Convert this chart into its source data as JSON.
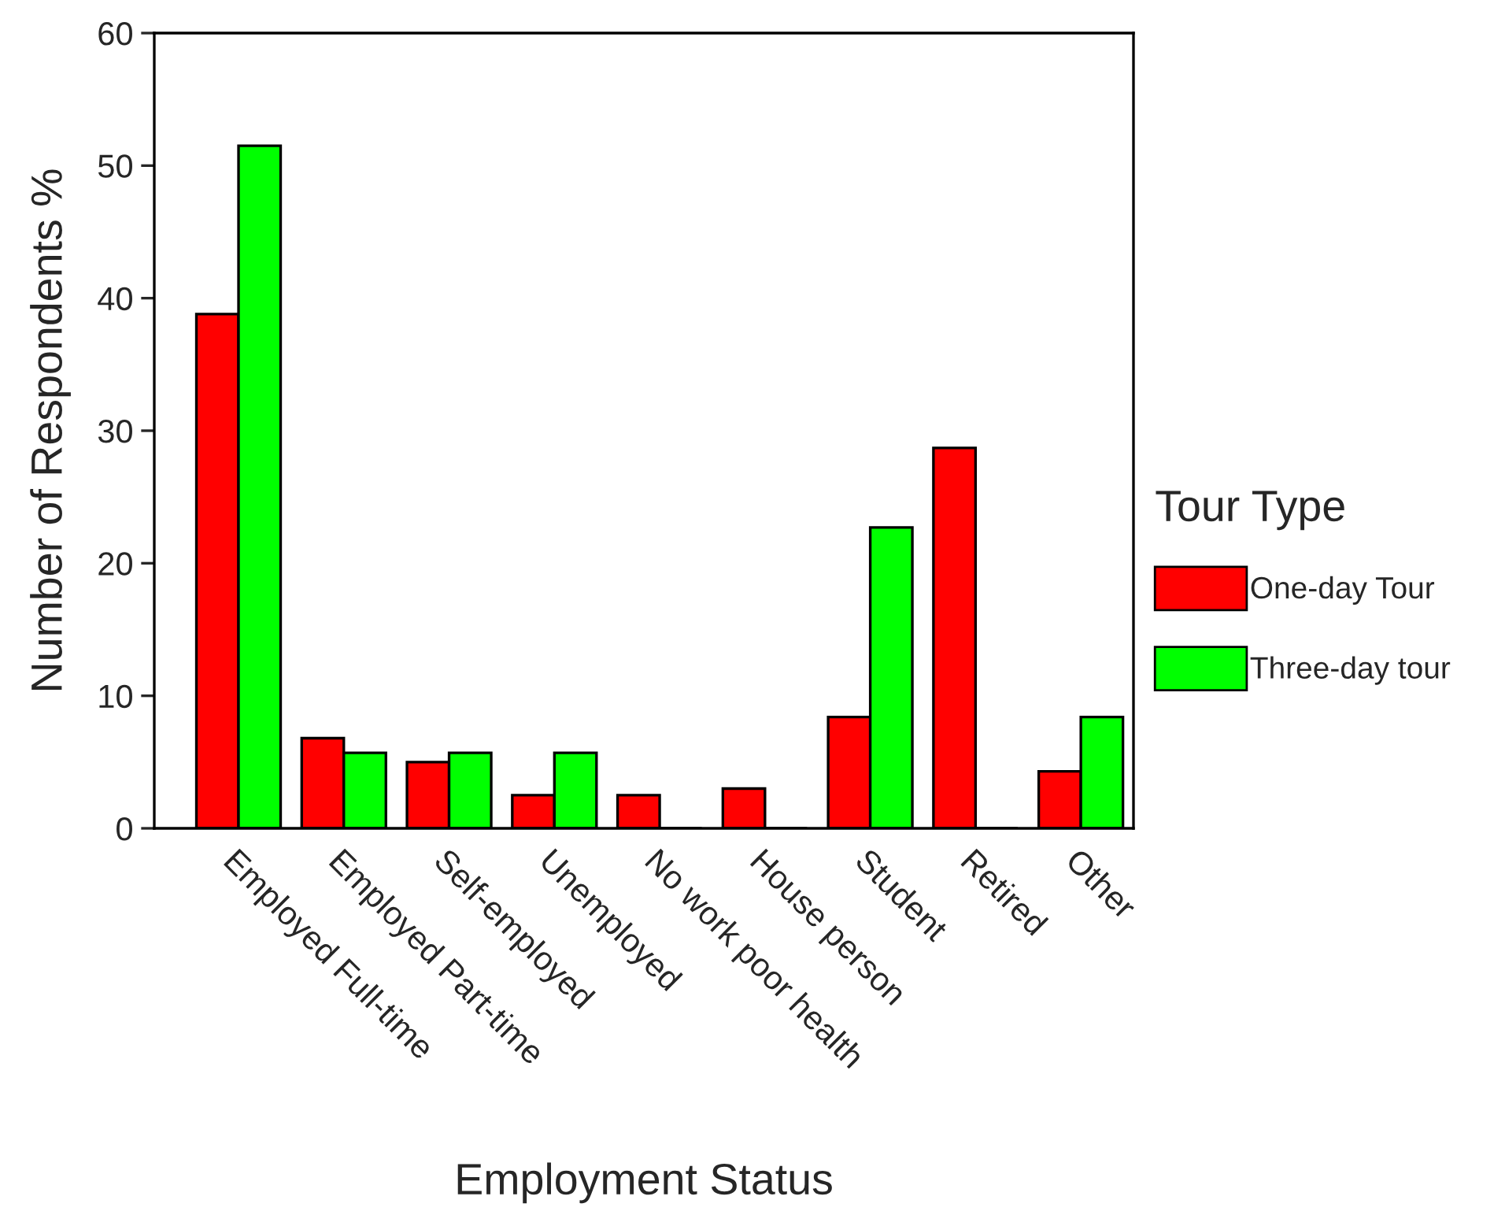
{
  "chart_data": {
    "type": "bar",
    "xlabel": "Employment Status",
    "ylabel": "Number of Respondents %",
    "legend_title": "Tour Type",
    "categories": [
      "Employed Full-time",
      "Employed Part-time",
      "Self-employed",
      "Unemployed",
      "No work poor health",
      "House person",
      "Student",
      "Retired",
      "Other"
    ],
    "series": [
      {
        "name": "One-day Tour",
        "color": "#ff0000",
        "values": [
          38.8,
          6.8,
          5.0,
          2.5,
          2.5,
          3.0,
          8.4,
          28.7,
          4.3
        ]
      },
      {
        "name": "Three-day tour",
        "color": "#00ff00",
        "values": [
          51.5,
          5.7,
          5.7,
          5.7,
          0,
          0,
          22.7,
          0,
          8.4
        ]
      }
    ],
    "ylim": [
      0,
      60
    ],
    "yticks": [
      0,
      10,
      20,
      30,
      40,
      50,
      60
    ],
    "grid": false,
    "legend": "right"
  }
}
